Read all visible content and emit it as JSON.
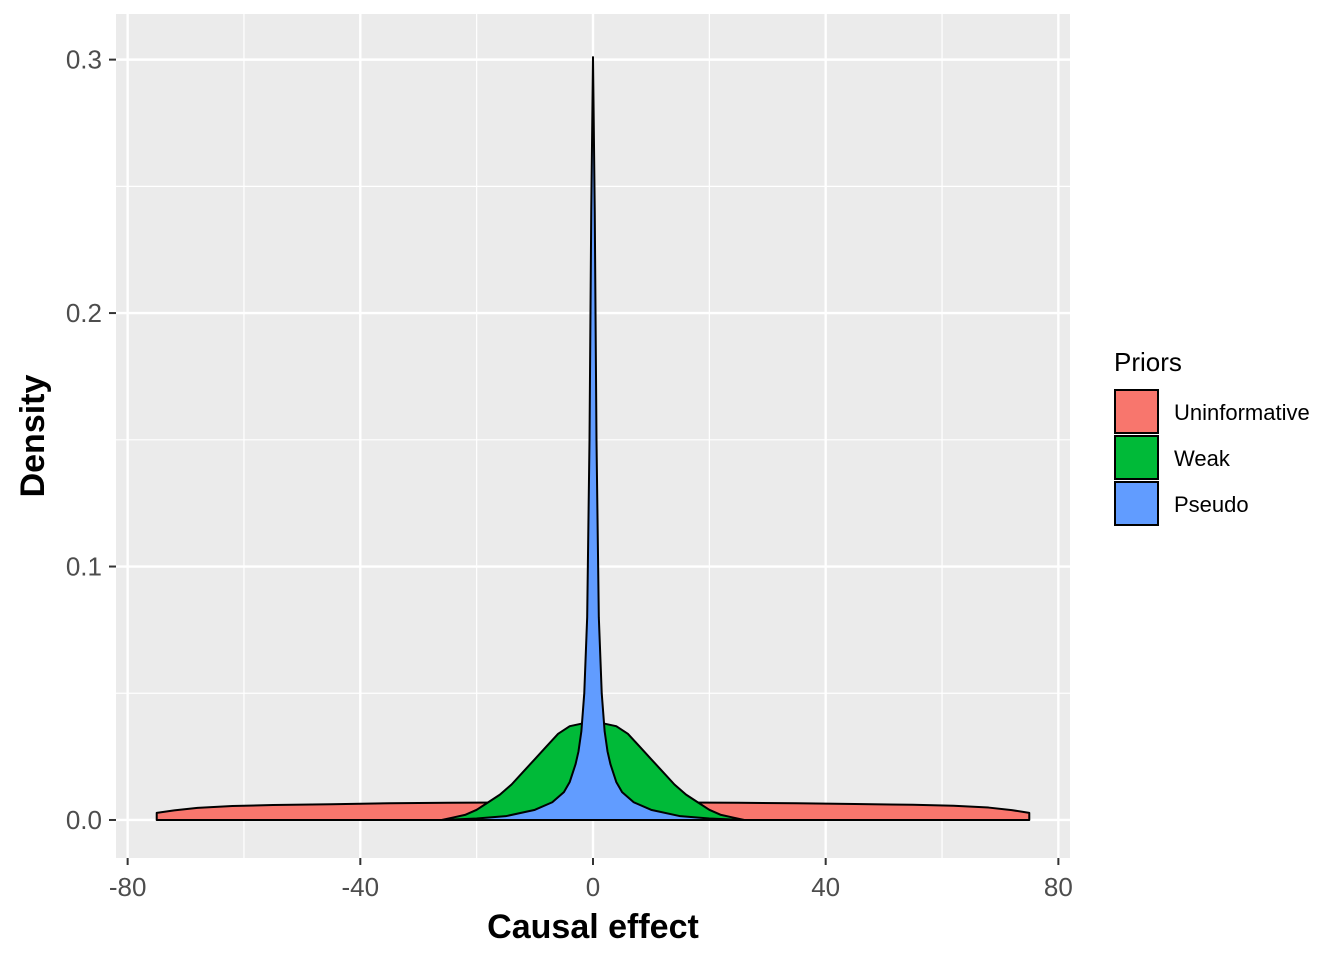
{
  "chart_data": {
    "type": "area",
    "xlabel": "Causal effect",
    "ylabel": "Density",
    "xlim": [
      -82,
      82
    ],
    "ylim": [
      -0.015,
      0.318
    ],
    "x_ticks": [
      -80,
      -40,
      0,
      40,
      80
    ],
    "x_tick_labels": [
      "-80",
      "-40",
      "0",
      "40",
      "80"
    ],
    "y_ticks": [
      0.0,
      0.1,
      0.2,
      0.3
    ],
    "y_tick_labels": [
      "0.0",
      "0.1",
      "0.2",
      "0.3"
    ],
    "grid": true,
    "panel_background": "#ebebeb",
    "legend": {
      "title": "Priors",
      "placement": "right",
      "entries": [
        "Uninformative",
        "Weak",
        "Pseudo"
      ]
    },
    "series": [
      {
        "name": "Uninformative",
        "color": "#f8766d",
        "x": [
          -75,
          -72,
          -68,
          -62,
          -55,
          -45,
          -35,
          -25,
          -15,
          -5,
          0,
          5,
          15,
          25,
          35,
          45,
          55,
          62,
          68,
          72,
          75
        ],
        "y": [
          0.0028,
          0.0038,
          0.0048,
          0.0055,
          0.0059,
          0.0062,
          0.0066,
          0.0068,
          0.0069,
          0.007,
          0.007,
          0.007,
          0.0069,
          0.0068,
          0.0066,
          0.0063,
          0.006,
          0.0056,
          0.0049,
          0.0039,
          0.0028
        ]
      },
      {
        "name": "Weak",
        "color": "#00ba38",
        "x": [
          -26,
          -24,
          -22,
          -20,
          -18,
          -16,
          -14,
          -12,
          -10,
          -8,
          -6,
          -4,
          -2,
          0,
          2,
          4,
          6,
          8,
          10,
          12,
          14,
          16,
          18,
          20,
          22,
          24,
          26
        ],
        "y": [
          0.0,
          0.001,
          0.002,
          0.004,
          0.007,
          0.01,
          0.014,
          0.019,
          0.024,
          0.029,
          0.034,
          0.037,
          0.038,
          0.038,
          0.038,
          0.037,
          0.034,
          0.029,
          0.024,
          0.019,
          0.014,
          0.01,
          0.007,
          0.004,
          0.002,
          0.001,
          0.0
        ]
      },
      {
        "name": "Pseudo",
        "color": "#619cff",
        "x": [
          -26,
          -20,
          -15,
          -10,
          -7,
          -5,
          -4,
          -3,
          -2.5,
          -2,
          -1.5,
          -1,
          -0.6,
          -0.3,
          0,
          0.3,
          0.6,
          1,
          1.5,
          2,
          2.5,
          3,
          4,
          5,
          7,
          10,
          15,
          20,
          26
        ],
        "y": [
          0.0,
          0.0006,
          0.0015,
          0.004,
          0.007,
          0.011,
          0.015,
          0.022,
          0.027,
          0.035,
          0.05,
          0.08,
          0.15,
          0.24,
          0.301,
          0.24,
          0.15,
          0.08,
          0.05,
          0.035,
          0.027,
          0.022,
          0.015,
          0.011,
          0.007,
          0.004,
          0.0015,
          0.0006,
          0.0
        ]
      }
    ]
  }
}
